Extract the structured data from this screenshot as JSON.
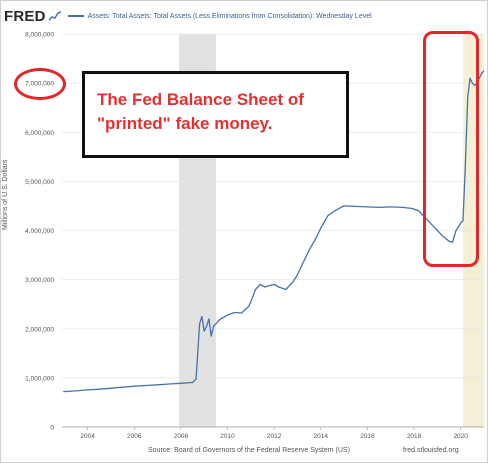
{
  "header": {
    "logo": "FRED",
    "series_title": "Assets: Total Assets: Total Assets (Less Eliminations from Consolidation): Wednesday Level"
  },
  "annotation": {
    "line1": "The Fed Balance Sheet of",
    "line2": "\"printed\" fake money."
  },
  "footer": {
    "source": "Source: Board of Governors of the Federal Reserve System (US)",
    "url": "fred.stlouisfed.org"
  },
  "colors": {
    "series": "#4572a7",
    "recession_shade": "#e1e1e1",
    "recent_shade": "#f4f0d6",
    "highlight": "#e3262a",
    "annotation_text": "#e53030"
  },
  "chart_data": {
    "type": "line",
    "title": "",
    "xlabel": "",
    "ylabel": "Millions of U.S. Dollars",
    "xlim": [
      2002.9,
      2021.0
    ],
    "ylim": [
      0,
      8000000
    ],
    "y_ticks": [
      0,
      1000000,
      2000000,
      3000000,
      4000000,
      5000000,
      6000000,
      7000000,
      8000000
    ],
    "y_tick_labels": [
      "0",
      "1,000,000",
      "2,000,000",
      "3,000,000",
      "4,000,000",
      "5,000,000",
      "6,000,000",
      "7,000,000",
      "8,000,000"
    ],
    "x_ticks": [
      2004,
      2006,
      2008,
      2010,
      2012,
      2014,
      2016,
      2018,
      2020
    ],
    "x_tick_labels": [
      "2004",
      "2006",
      "2008",
      "2010",
      "2012",
      "2014",
      "2016",
      "2018",
      "2020"
    ],
    "grid": true,
    "shaded_periods": [
      {
        "kind": "recession",
        "start": 2007.92,
        "end": 2009.5
      },
      {
        "kind": "recession",
        "start": 2020.1,
        "end": 2021.0
      }
    ],
    "series": [
      {
        "x": [
          2002.95,
          2003.5,
          2004.0,
          2004.5,
          2005.0,
          2005.5,
          2006.0,
          2006.5,
          2007.0,
          2007.5,
          2008.0,
          2008.5,
          2008.65,
          2008.72,
          2008.8,
          2008.9,
          2009.0,
          2009.1,
          2009.2,
          2009.3,
          2009.4,
          2009.5,
          2009.7,
          2009.9,
          2010.0,
          2010.3,
          2010.6,
          2010.9,
          2011.0,
          2011.2,
          2011.4,
          2011.6,
          2011.8,
          2012.0,
          2012.2,
          2012.5,
          2012.8,
          2013.0,
          2013.2,
          2013.5,
          2013.8,
          2014.0,
          2014.3,
          2014.6,
          2014.9,
          2015.0,
          2015.5,
          2016.0,
          2016.5,
          2017.0,
          2017.5,
          2017.9,
          2018.2,
          2018.5,
          2018.8,
          2019.0,
          2019.2,
          2019.5,
          2019.65,
          2019.8,
          2020.0,
          2020.1,
          2020.2,
          2020.25,
          2020.3,
          2020.4,
          2020.5,
          2020.6,
          2020.7,
          2020.8,
          2020.9,
          2021.0
        ],
        "values": [
          720000,
          735000,
          755000,
          770000,
          790000,
          810000,
          830000,
          845000,
          860000,
          875000,
          890000,
          905000,
          980000,
          1500000,
          2100000,
          2250000,
          1950000,
          2050000,
          2200000,
          1850000,
          2050000,
          2100000,
          2200000,
          2250000,
          2280000,
          2330000,
          2320000,
          2450000,
          2550000,
          2800000,
          2900000,
          2850000,
          2880000,
          2900000,
          2850000,
          2800000,
          2950000,
          3100000,
          3300000,
          3600000,
          3850000,
          4050000,
          4300000,
          4400000,
          4480000,
          4500000,
          4490000,
          4480000,
          4470000,
          4480000,
          4470000,
          4450000,
          4400000,
          4250000,
          4100000,
          4000000,
          3900000,
          3780000,
          3760000,
          4000000,
          4150000,
          4200000,
          5300000,
          6000000,
          6700000,
          7100000,
          7000000,
          6950000,
          7000000,
          7100000,
          7200000,
          7250000
        ]
      }
    ]
  }
}
